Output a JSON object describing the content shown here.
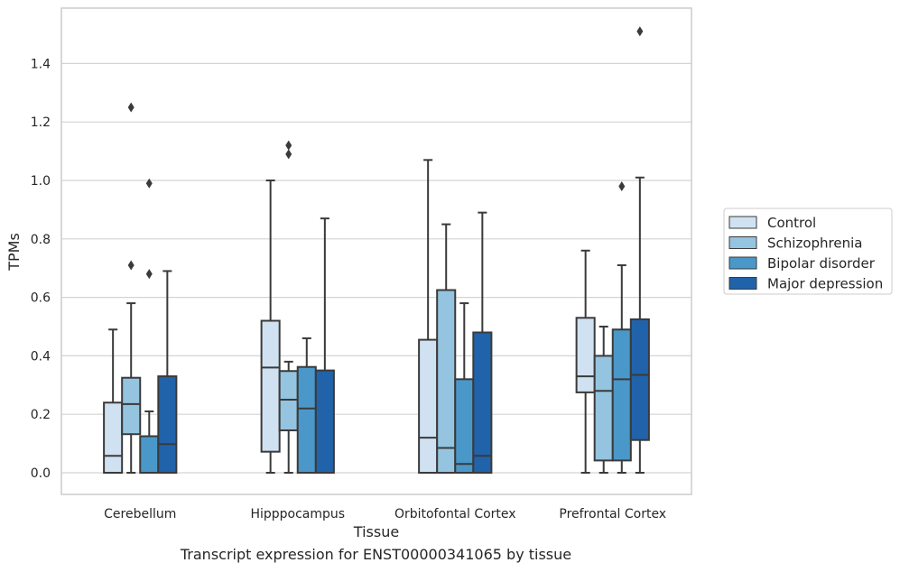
{
  "chart_data": {
    "type": "box",
    "xlabel": "Tissue",
    "ylabel": "TPMs",
    "caption": "Transcript expression for ENST00000341065 by tissue",
    "ylim": [
      -0.07,
      1.59
    ],
    "yticks": [
      0.0,
      0.2,
      0.4,
      0.6,
      0.8,
      1.0,
      1.2,
      1.4
    ],
    "ytick_labels": [
      "0.0",
      "0.2",
      "0.4",
      "0.6",
      "0.8",
      "1.0",
      "1.2",
      "1.4"
    ],
    "grid": "horizontal",
    "legend_position": "right",
    "categories": [
      "Cerebellum",
      "Hipppocampus",
      "Orbitofontal Cortex",
      "Prefrontal Cortex"
    ],
    "series": [
      {
        "name": "Control",
        "color": "#d0e1f2",
        "boxes": [
          {
            "min": 0.0,
            "q1": 0.0,
            "median": 0.058,
            "q3": 0.24,
            "max": 0.49,
            "outliers": []
          },
          {
            "min": 0.0,
            "q1": 0.072,
            "median": 0.36,
            "q3": 0.52,
            "max": 1.0,
            "outliers": []
          },
          {
            "min": 0.0,
            "q1": 0.0,
            "median": 0.12,
            "q3": 0.455,
            "max": 1.07,
            "outliers": []
          },
          {
            "min": 0.0,
            "q1": 0.275,
            "median": 0.33,
            "q3": 0.53,
            "max": 0.76,
            "outliers": []
          }
        ]
      },
      {
        "name": "Schizophrenia",
        "color": "#94c4df",
        "boxes": [
          {
            "min": 0.0,
            "q1": 0.132,
            "median": 0.235,
            "q3": 0.325,
            "max": 0.58,
            "outliers": [
              0.71,
              1.25
            ]
          },
          {
            "min": 0.0,
            "q1": 0.145,
            "median": 0.25,
            "q3": 0.348,
            "max": 0.38,
            "outliers": [
              1.09,
              1.12
            ]
          },
          {
            "min": 0.0,
            "q1": 0.0,
            "median": 0.085,
            "q3": 0.625,
            "max": 0.85,
            "outliers": []
          },
          {
            "min": 0.0,
            "q1": 0.042,
            "median": 0.28,
            "q3": 0.4,
            "max": 0.5,
            "outliers": []
          }
        ]
      },
      {
        "name": "Bipolar disorder",
        "color": "#4a98c9",
        "boxes": [
          {
            "min": 0.0,
            "q1": 0.0,
            "median": 0.0,
            "q3": 0.125,
            "max": 0.21,
            "outliers": [
              0.68,
              0.99
            ]
          },
          {
            "min": 0.0,
            "q1": 0.0,
            "median": 0.22,
            "q3": 0.362,
            "max": 0.46,
            "outliers": []
          },
          {
            "min": 0.0,
            "q1": 0.0,
            "median": 0.03,
            "q3": 0.32,
            "max": 0.58,
            "outliers": []
          },
          {
            "min": 0.0,
            "q1": 0.042,
            "median": 0.32,
            "q3": 0.49,
            "max": 0.71,
            "outliers": [
              0.98
            ]
          }
        ]
      },
      {
        "name": "Major depression",
        "color": "#2163aa",
        "boxes": [
          {
            "min": 0.0,
            "q1": 0.0,
            "median": 0.098,
            "q3": 0.33,
            "max": 0.69,
            "outliers": []
          },
          {
            "min": 0.0,
            "q1": 0.0,
            "median": 0.0,
            "q3": 0.35,
            "max": 0.87,
            "outliers": []
          },
          {
            "min": 0.0,
            "q1": 0.0,
            "median": 0.058,
            "q3": 0.48,
            "max": 0.89,
            "outliers": []
          },
          {
            "min": 0.0,
            "q1": 0.112,
            "median": 0.335,
            "q3": 0.525,
            "max": 1.01,
            "outliers": [
              1.51
            ]
          }
        ]
      }
    ]
  }
}
